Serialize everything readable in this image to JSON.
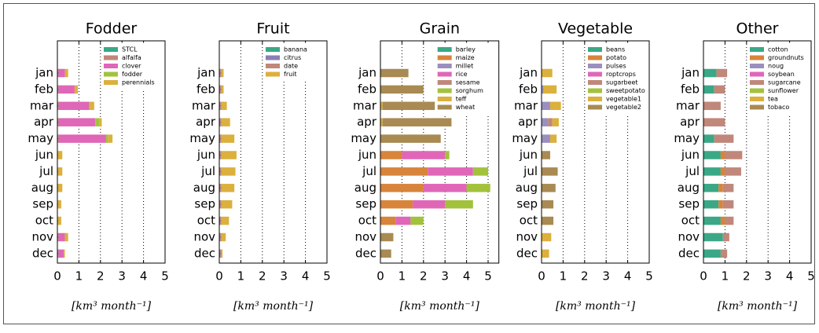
{
  "chart_data": [
    {
      "type": "barh",
      "stacked": true,
      "title": "Fodder",
      "xlabel": "[km³ month⁻¹]",
      "categories": [
        "jan",
        "feb",
        "mar",
        "apr",
        "may",
        "jun",
        "jul",
        "aug",
        "sep",
        "oct",
        "nov",
        "dec"
      ],
      "xlim": [
        0,
        5
      ],
      "xticks": [
        0,
        1,
        2,
        3,
        4,
        5
      ],
      "grid": true,
      "legend": "upper right",
      "series": [
        {
          "name": "STCL",
          "color": "#3aa886",
          "values": [
            0.03,
            0.03,
            0.03,
            0.03,
            0.03,
            0.02,
            0.02,
            0.02,
            0.02,
            0.02,
            0.03,
            0.03
          ]
        },
        {
          "name": "alfalfa",
          "color": "#c0877a",
          "values": [
            0.02,
            0.02,
            0.03,
            0.03,
            0.03,
            0.01,
            0.01,
            0.01,
            0.01,
            0.01,
            0.02,
            0.02
          ]
        },
        {
          "name": "clover",
          "color": "#e066b8",
          "values": [
            0.3,
            0.75,
            1.4,
            1.7,
            2.2,
            0,
            0,
            0,
            0,
            0,
            0.3,
            0.25
          ]
        },
        {
          "name": "fodder",
          "color": "#a2c23c",
          "values": [
            0,
            0,
            0.05,
            0.2,
            0.1,
            0,
            0,
            0,
            0,
            0,
            0,
            0
          ]
        },
        {
          "name": "perennials",
          "color": "#dcb03c",
          "values": [
            0.15,
            0.15,
            0.2,
            0.1,
            0.2,
            0.2,
            0.2,
            0.2,
            0.15,
            0.15,
            0.15,
            0.05
          ]
        }
      ]
    },
    {
      "type": "barh",
      "stacked": true,
      "title": "Fruit",
      "xlabel": "[km³ month⁻¹]",
      "categories": [
        "jan",
        "feb",
        "mar",
        "apr",
        "may",
        "jun",
        "jul",
        "aug",
        "sep",
        "oct",
        "nov",
        "dec"
      ],
      "xlim": [
        0,
        5
      ],
      "xticks": [
        0,
        1,
        2,
        3,
        4,
        5
      ],
      "grid": true,
      "legend": "upper right",
      "series": [
        {
          "name": "banana",
          "color": "#3aa886",
          "values": [
            0.02,
            0.02,
            0.02,
            0.02,
            0.02,
            0.02,
            0.02,
            0.02,
            0.02,
            0.02,
            0.02,
            0.02
          ]
        },
        {
          "name": "citrus",
          "color": "#8b7fb5",
          "values": [
            0.03,
            0.03,
            0.03,
            0.03,
            0.03,
            0.03,
            0.03,
            0.03,
            0.03,
            0.03,
            0.03,
            0.03
          ]
        },
        {
          "name": "date",
          "color": "#c0877a",
          "values": [
            0.05,
            0.05,
            0.05,
            0.05,
            0.05,
            0.05,
            0.05,
            0.05,
            0.05,
            0.05,
            0.05,
            0.05
          ]
        },
        {
          "name": "fruit",
          "color": "#dcb03c",
          "values": [
            0.1,
            0.1,
            0.25,
            0.4,
            0.6,
            0.7,
            0.65,
            0.6,
            0.5,
            0.35,
            0.2,
            0.05
          ]
        }
      ]
    },
    {
      "type": "barh",
      "stacked": true,
      "title": "Grain",
      "xlabel": "[km³ month⁻¹]",
      "categories": [
        "jan",
        "feb",
        "mar",
        "apr",
        "may",
        "jun",
        "jul",
        "aug",
        "sep",
        "oct",
        "nov",
        "dec"
      ],
      "xlim": [
        0,
        5.5
      ],
      "xticks": [
        0,
        1,
        2,
        3,
        4,
        5
      ],
      "grid": true,
      "legend": "upper right",
      "series": [
        {
          "name": "barley",
          "color": "#3aa886",
          "values": [
            0,
            0,
            0,
            0,
            0,
            0,
            0,
            0,
            0,
            0,
            0,
            0
          ]
        },
        {
          "name": "maize",
          "color": "#d8843a",
          "values": [
            0,
            0,
            0,
            0,
            0,
            1.0,
            2.2,
            2.0,
            1.5,
            0.7,
            0,
            0
          ]
        },
        {
          "name": "millet",
          "color": "#9a8fbf",
          "values": [
            0,
            0,
            0,
            0,
            0,
            0,
            0,
            0,
            0,
            0,
            0,
            0
          ]
        },
        {
          "name": "rice",
          "color": "#e066b8",
          "values": [
            0,
            0,
            0,
            0,
            0,
            2.0,
            2.1,
            2.0,
            1.5,
            0.7,
            0,
            0
          ]
        },
        {
          "name": "sesame",
          "color": "#c0877a",
          "values": [
            0,
            0,
            0,
            0,
            0,
            0,
            0,
            0,
            0,
            0,
            0,
            0
          ]
        },
        {
          "name": "sorghum",
          "color": "#a2c23c",
          "values": [
            0,
            0,
            0,
            0,
            0,
            0.2,
            0.7,
            1.1,
            1.3,
            0.6,
            0,
            0
          ]
        },
        {
          "name": "teff",
          "color": "#dcb03c",
          "values": [
            0,
            0,
            0.1,
            0.1,
            0,
            0,
            0,
            0,
            0,
            0,
            0,
            0
          ]
        },
        {
          "name": "wheat",
          "color": "#a88a52",
          "values": [
            1.3,
            2.0,
            2.9,
            3.2,
            2.8,
            0,
            0,
            0,
            0,
            0,
            0.6,
            0.5
          ]
        }
      ]
    },
    {
      "type": "barh",
      "stacked": true,
      "title": "Vegetable",
      "xlabel": "[km³ month⁻¹]",
      "categories": [
        "jan",
        "feb",
        "mar",
        "apr",
        "may",
        "jun",
        "jul",
        "aug",
        "sep",
        "oct",
        "nov",
        "dec"
      ],
      "xlim": [
        0,
        5
      ],
      "xticks": [
        0,
        1,
        2,
        3,
        4,
        5
      ],
      "grid": true,
      "legend": "upper right",
      "series": [
        {
          "name": "beans",
          "color": "#3aa886",
          "values": [
            0,
            0,
            0,
            0,
            0,
            0,
            0,
            0,
            0,
            0,
            0,
            0
          ]
        },
        {
          "name": "potato",
          "color": "#d8843a",
          "values": [
            0,
            0,
            0,
            0,
            0,
            0,
            0,
            0,
            0,
            0,
            0,
            0
          ]
        },
        {
          "name": "pulses",
          "color": "#9a8fbf",
          "values": [
            0,
            0.1,
            0.4,
            0.3,
            0.4,
            0,
            0,
            0,
            0,
            0,
            0,
            0
          ]
        },
        {
          "name": "roptcrops",
          "color": "#e066b8",
          "values": [
            0,
            0,
            0,
            0,
            0,
            0,
            0,
            0,
            0,
            0,
            0,
            0
          ]
        },
        {
          "name": "sugarbeet",
          "color": "#c0877a",
          "values": [
            0,
            0,
            0,
            0.2,
            0,
            0,
            0,
            0,
            0,
            0,
            0,
            0
          ]
        },
        {
          "name": "sweetpotato",
          "color": "#a2c23c",
          "values": [
            0,
            0,
            0,
            0,
            0,
            0,
            0,
            0,
            0,
            0,
            0,
            0
          ]
        },
        {
          "name": "vegetable1",
          "color": "#dcb03c",
          "values": [
            0.5,
            0.6,
            0.5,
            0.3,
            0.3,
            0,
            0,
            0,
            0,
            0,
            0.45,
            0.35
          ]
        },
        {
          "name": "vegetable2",
          "color": "#a88a52",
          "values": [
            0,
            0,
            0,
            0,
            0,
            0.4,
            0.75,
            0.65,
            0.55,
            0.55,
            0,
            0
          ]
        }
      ]
    },
    {
      "type": "barh",
      "stacked": true,
      "title": "Other",
      "xlabel": "[km³ month⁻¹]",
      "categories": [
        "jan",
        "feb",
        "mar",
        "apr",
        "may",
        "jun",
        "jul",
        "aug",
        "sep",
        "oct",
        "nov",
        "dec"
      ],
      "xlim": [
        0,
        5
      ],
      "xticks": [
        0,
        1,
        2,
        3,
        4,
        5
      ],
      "grid": true,
      "legend": "upper right",
      "series": [
        {
          "name": "cotton",
          "color": "#3aa886",
          "values": [
            0.6,
            0.5,
            0,
            0,
            0.5,
            0.8,
            0.8,
            0.7,
            0.7,
            0.8,
            0.9,
            0.8
          ]
        },
        {
          "name": "groundnuts",
          "color": "#d8843a",
          "values": [
            0,
            0,
            0,
            0,
            0,
            0.2,
            0.2,
            0.2,
            0.2,
            0.2,
            0,
            0
          ]
        },
        {
          "name": "noug",
          "color": "#9a8fbf",
          "values": [
            0,
            0,
            0,
            0,
            0,
            0,
            0,
            0,
            0,
            0,
            0,
            0
          ]
        },
        {
          "name": "soybean",
          "color": "#e066b8",
          "values": [
            0,
            0,
            0,
            0,
            0,
            0,
            0,
            0,
            0,
            0,
            0,
            0
          ]
        },
        {
          "name": "sugarcane",
          "color": "#c0877a",
          "values": [
            0.5,
            0.5,
            0.8,
            1.0,
            0.9,
            0.8,
            0.75,
            0.5,
            0.5,
            0.4,
            0.3,
            0.3
          ]
        },
        {
          "name": "sunflower",
          "color": "#a2c23c",
          "values": [
            0,
            0,
            0,
            0,
            0,
            0,
            0,
            0,
            0,
            0,
            0,
            0
          ]
        },
        {
          "name": "tea",
          "color": "#dcb03c",
          "values": [
            0,
            0,
            0,
            0,
            0,
            0,
            0,
            0,
            0,
            0,
            0,
            0
          ]
        },
        {
          "name": "tobaco",
          "color": "#a88a52",
          "values": [
            0,
            0,
            0,
            0,
            0,
            0,
            0,
            0,
            0,
            0,
            0,
            0
          ]
        }
      ]
    }
  ]
}
